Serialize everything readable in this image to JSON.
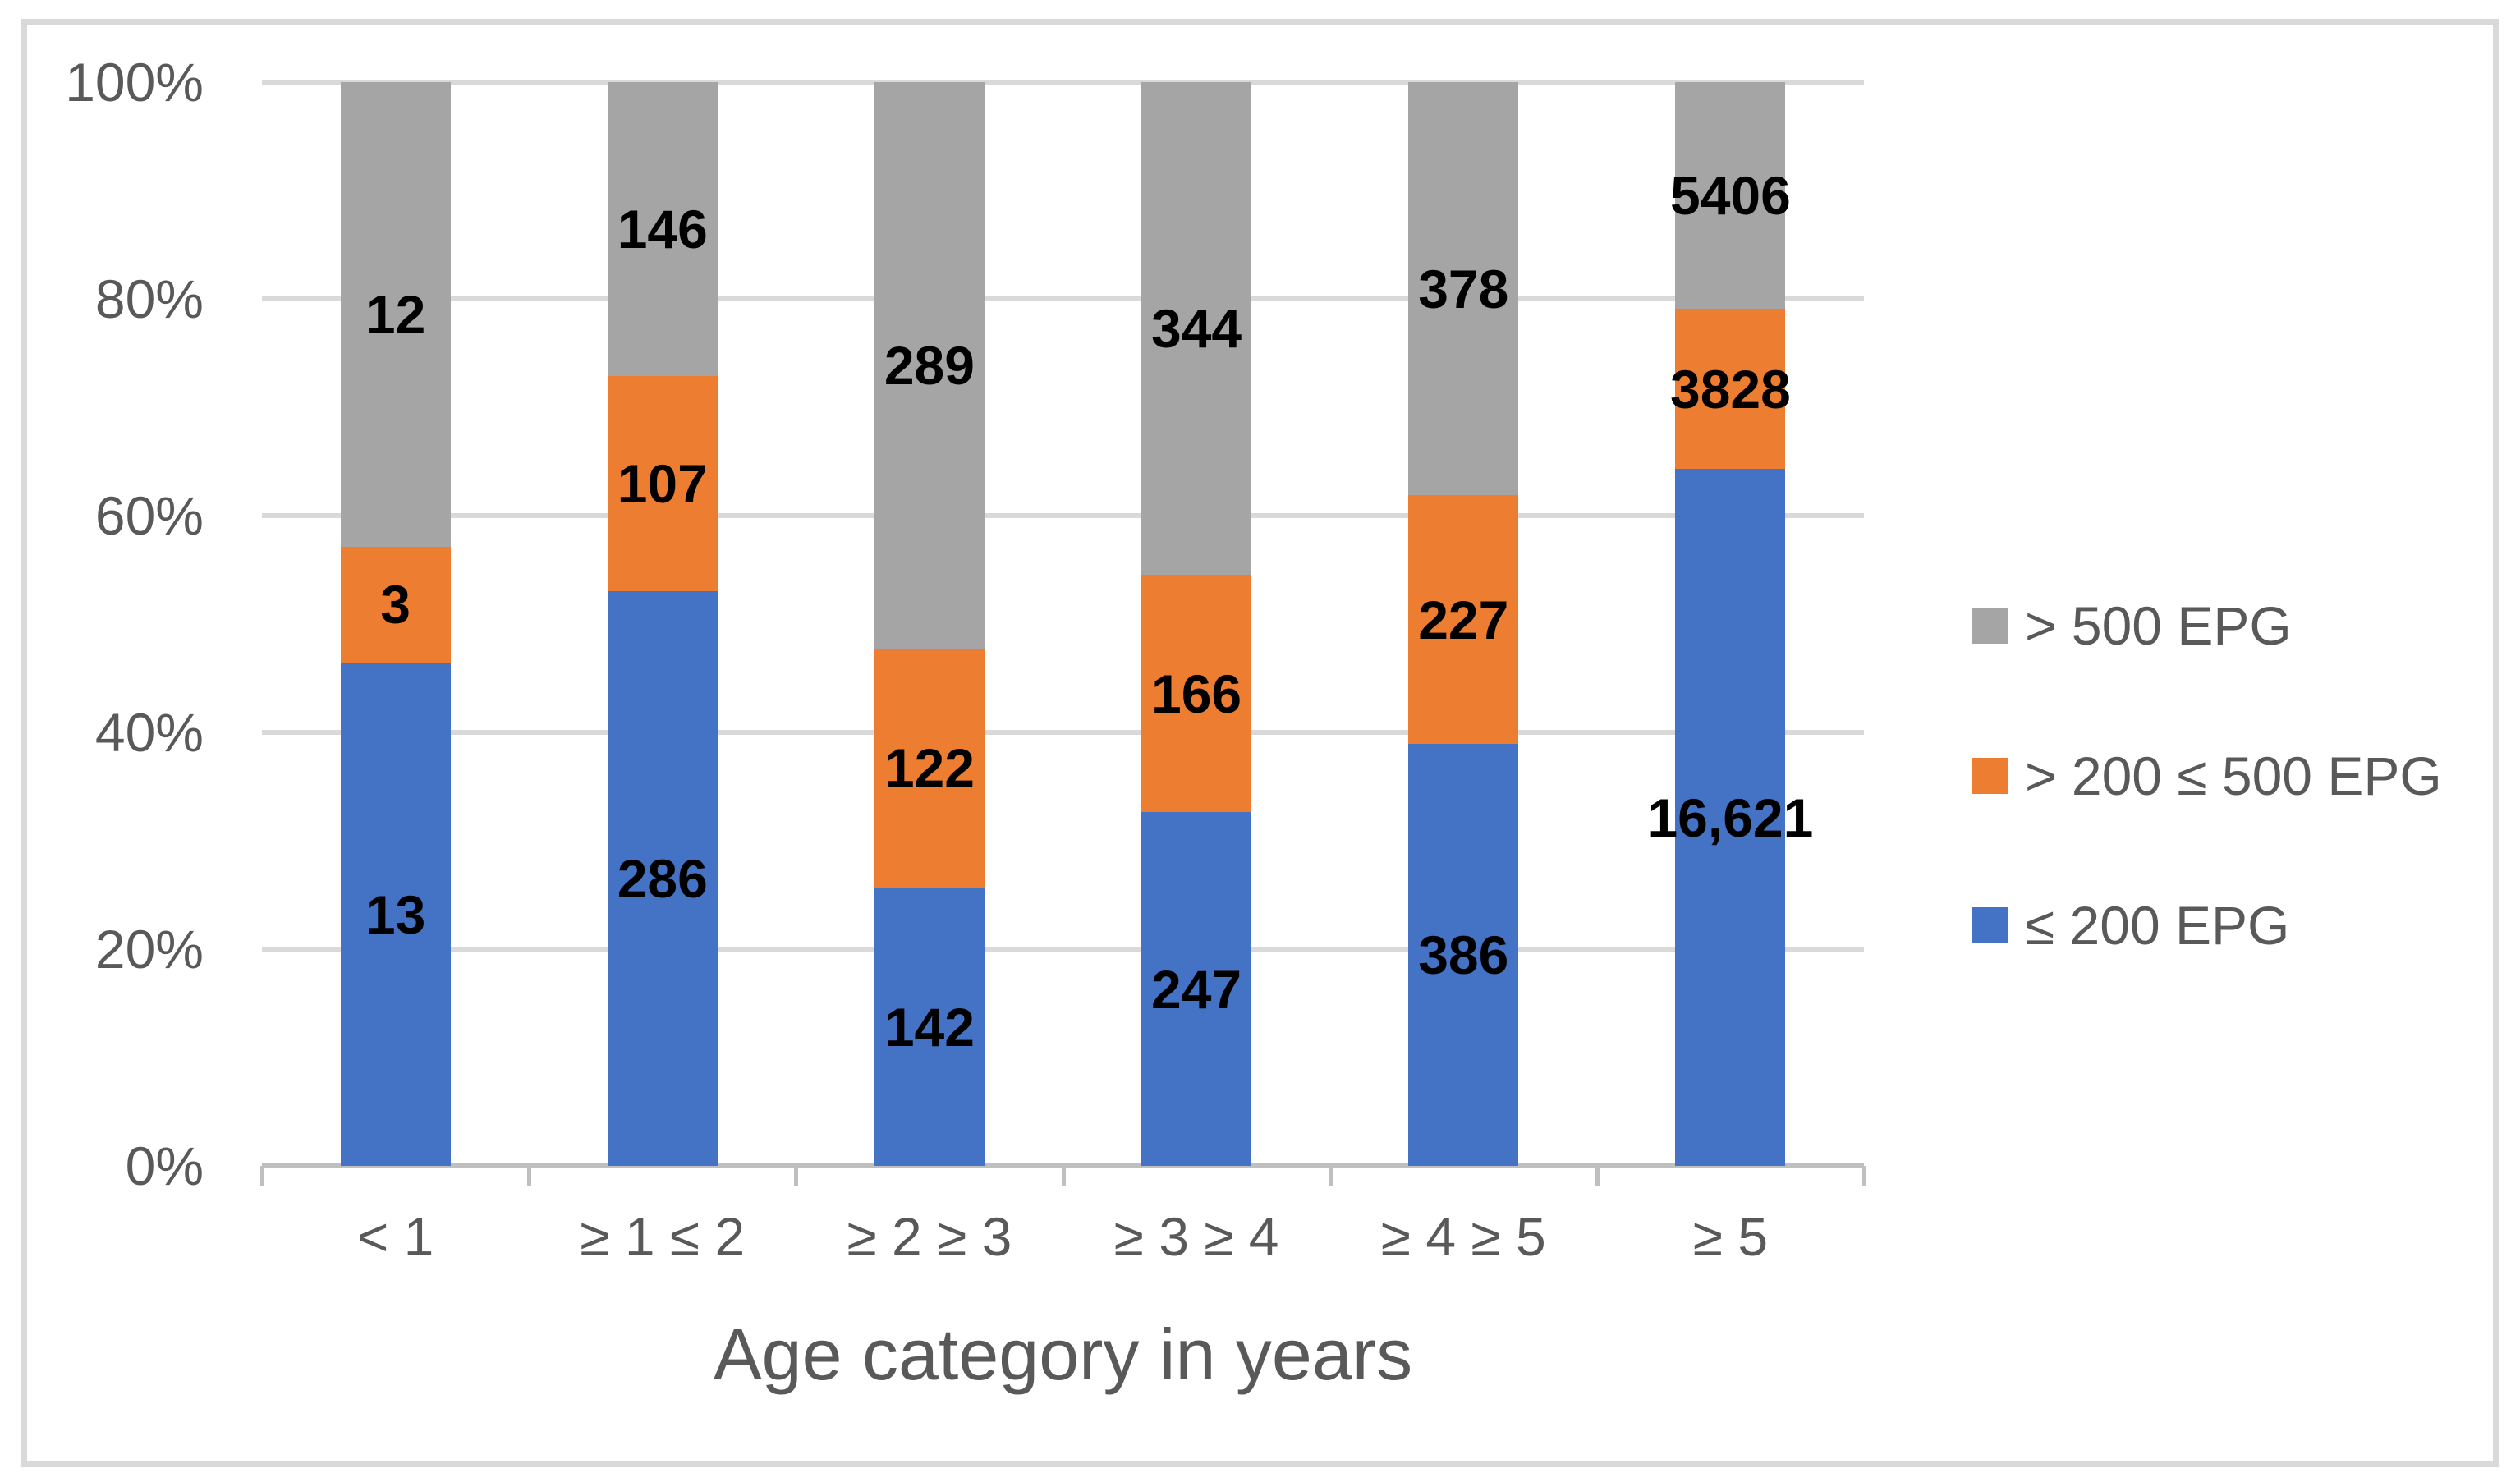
{
  "figure": {
    "background": "#FFFFFF",
    "frame_border_color": "#D9D9D9"
  },
  "colors": {
    "blue_series": "#4472C4",
    "orange_series": "#ED7D31",
    "gray_series": "#A5A5A5",
    "gridline": "#D9D9D9",
    "axis_line": "#BFBFBF",
    "axis_text": "#595959",
    "data_label_text": "#000000"
  },
  "chart_data": {
    "type": "bar",
    "subtype": "100-percent-stacked-column",
    "title": "",
    "xlabel": "Age category in years",
    "ylabel": "",
    "categories": [
      "< 1",
      "≥ 1 ≤ 2",
      "≥ 2 ≥ 3",
      "≥ 3 ≥ 4",
      "≥ 4 ≥ 5",
      "≥ 5"
    ],
    "series": [
      {
        "name": "≤ 200 EPG",
        "color": "#4472C4",
        "values": [
          13,
          286,
          142,
          247,
          386,
          16621
        ],
        "labels": [
          "13",
          "286",
          "142",
          "247",
          "386",
          "16,621"
        ]
      },
      {
        "name": "> 200 ≤ 500 EPG",
        "color": "#ED7D31",
        "values": [
          3,
          107,
          122,
          166,
          227,
          3828
        ],
        "labels": [
          "3",
          "107",
          "122",
          "166",
          "227",
          "3828"
        ]
      },
      {
        "name": "> 500 EPG",
        "color": "#A5A5A5",
        "values": [
          12,
          146,
          289,
          344,
          378,
          5406
        ],
        "labels": [
          "12",
          "146",
          "289",
          "344",
          "378",
          "5406"
        ]
      }
    ],
    "stack_order_top_to_bottom": [
      2,
      1,
      0
    ],
    "y_ticks": [
      "100%",
      "80%",
      "60%",
      "40%",
      "20%",
      "0%"
    ],
    "ylim": [
      0,
      100
    ],
    "grid": true,
    "legend_position": "right",
    "legend_order": [
      2,
      1,
      0
    ]
  }
}
